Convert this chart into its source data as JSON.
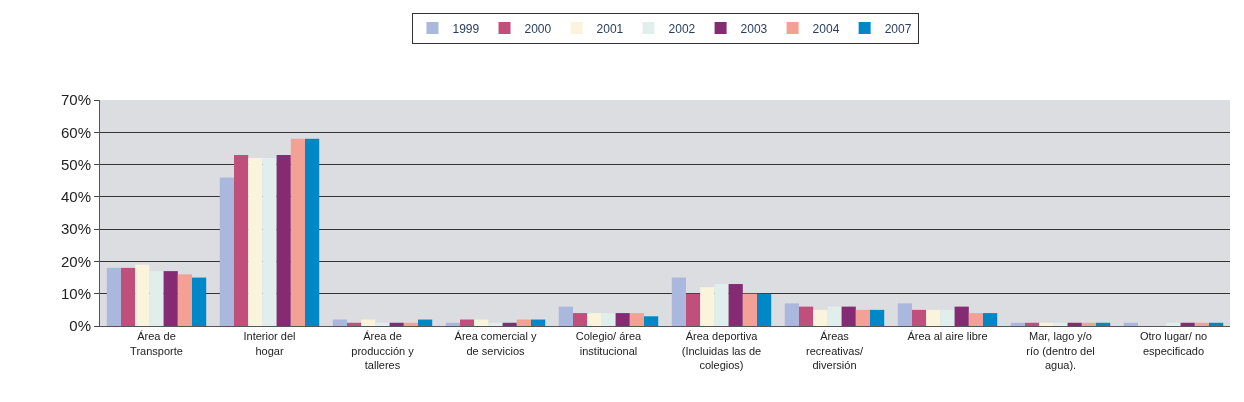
{
  "chart_data": {
    "type": "bar",
    "categories": [
      "Área de\nTransporte",
      "Interior del\nhogar",
      "Área de\nproducción y\ntalleres",
      "Área comercial y\nde servicios",
      "Colegio/ área\ninstitucional",
      "Área deportiva\n(Incluidas las de\ncolegios)",
      "Áreas\nrecreativas/\ndiversión",
      "Área al aire libre",
      "Mar, lago y/o\nrío (dentro del\nagua).",
      "Otro lugar/ no\nespecificado"
    ],
    "series": [
      {
        "name": "1999",
        "color": "#abb8de",
        "values": [
          18,
          46,
          2,
          1,
          6,
          15,
          7,
          7,
          1,
          1
        ]
      },
      {
        "name": "2000",
        "color": "#c04f7b",
        "values": [
          18,
          53,
          1,
          2,
          4,
          10,
          6,
          5,
          1,
          0
        ]
      },
      {
        "name": "2001",
        "color": "#faf4dc",
        "values": [
          19,
          52,
          2,
          2,
          4,
          12,
          5,
          5,
          1,
          0
        ]
      },
      {
        "name": "2002",
        "color": "#e0efec",
        "values": [
          17,
          52,
          1,
          1,
          4,
          13,
          6,
          5,
          1,
          1
        ]
      },
      {
        "name": "2003",
        "color": "#842b74",
        "values": [
          17,
          53,
          1,
          1,
          4,
          13,
          6,
          6,
          1,
          1
        ]
      },
      {
        "name": "2004",
        "color": "#f4a195",
        "values": [
          16,
          58,
          1,
          2,
          4,
          10,
          5,
          4,
          1,
          1
        ]
      },
      {
        "name": "2007",
        "color": "#0087c8",
        "values": [
          15,
          58,
          2,
          2,
          3,
          10,
          5,
          4,
          1,
          1
        ]
      }
    ],
    "ylim": [
      0,
      70
    ],
    "yticks": [
      {
        "value": 0,
        "label": "0%"
      },
      {
        "value": 10,
        "label": "10%"
      },
      {
        "value": 20,
        "label": "20%"
      },
      {
        "value": 30,
        "label": "30%"
      },
      {
        "value": 40,
        "label": "40%"
      },
      {
        "value": 50,
        "label": "50%"
      },
      {
        "value": 60,
        "label": "60%"
      },
      {
        "value": 70,
        "label": "70%"
      }
    ],
    "grid": "y",
    "legend": "top"
  }
}
